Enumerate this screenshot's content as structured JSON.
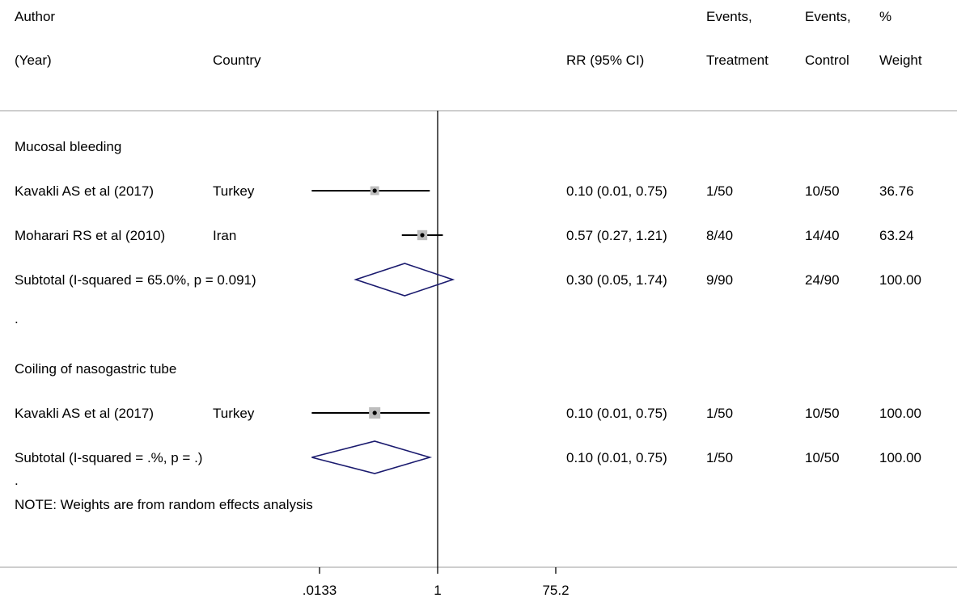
{
  "headers": {
    "author_line1": "Author",
    "author_line2": "(Year)",
    "country": "Country",
    "rr": "RR (95% CI)",
    "events_t_line1": "Events,",
    "events_t_line2": "Treatment",
    "events_c_line1": "Events,",
    "events_c_line2": "Control",
    "weight_line1": "%",
    "weight_line2": "Weight"
  },
  "note_dot_1": ".",
  "note_dot_2": ".",
  "note": "NOTE: Weights are from random effects analysis",
  "colors": {
    "diamond": "#1a1a6e",
    "marker_box": "#bdbdbd",
    "line": "#000000",
    "rule": "#b0b0b0"
  },
  "chart_data": {
    "type": "forest",
    "scale": "log",
    "null_value": 1,
    "xticks": [
      0.0133,
      1,
      75.2
    ],
    "xtick_labels": [
      ".0133",
      "1",
      "75.2"
    ],
    "groups": [
      {
        "label": "Mucosal bleeding",
        "studies": [
          {
            "author": "Kavakli AS et al (2017)",
            "country": "Turkey",
            "rr": 0.1,
            "lo": 0.01,
            "hi": 0.75,
            "rr_text": "0.10 (0.01, 0.75)",
            "events_t": "1/50",
            "events_c": "10/50",
            "weight": "36.76",
            "w": 36.76
          },
          {
            "author": "Moharari RS et al (2010)",
            "country": "Iran",
            "rr": 0.57,
            "lo": 0.27,
            "hi": 1.21,
            "rr_text": "0.57 (0.27, 1.21)",
            "events_t": "8/40",
            "events_c": "14/40",
            "weight": "63.24",
            "w": 63.24
          }
        ],
        "subtotal": {
          "label": "Subtotal  (I-squared = 65.0%, p = 0.091)",
          "rr": 0.3,
          "lo": 0.05,
          "hi": 1.74,
          "rr_text": "0.30 (0.05, 1.74)",
          "events_t": "9/90",
          "events_c": "24/90",
          "weight": "100.00"
        }
      },
      {
        "label": "Coiling of nasogastric tube",
        "studies": [
          {
            "author": "Kavakli AS et al (2017)",
            "country": "Turkey",
            "rr": 0.1,
            "lo": 0.01,
            "hi": 0.75,
            "rr_text": "0.10 (0.01, 0.75)",
            "events_t": "1/50",
            "events_c": "10/50",
            "weight": "100.00",
            "w": 100.0
          }
        ],
        "subtotal": {
          "label": "Subtotal  (I-squared = .%, p = .)",
          "rr": 0.1,
          "lo": 0.01,
          "hi": 0.75,
          "rr_text": "0.10 (0.01, 0.75)",
          "events_t": "1/50",
          "events_c": "10/50",
          "weight": "100.00"
        }
      }
    ]
  }
}
